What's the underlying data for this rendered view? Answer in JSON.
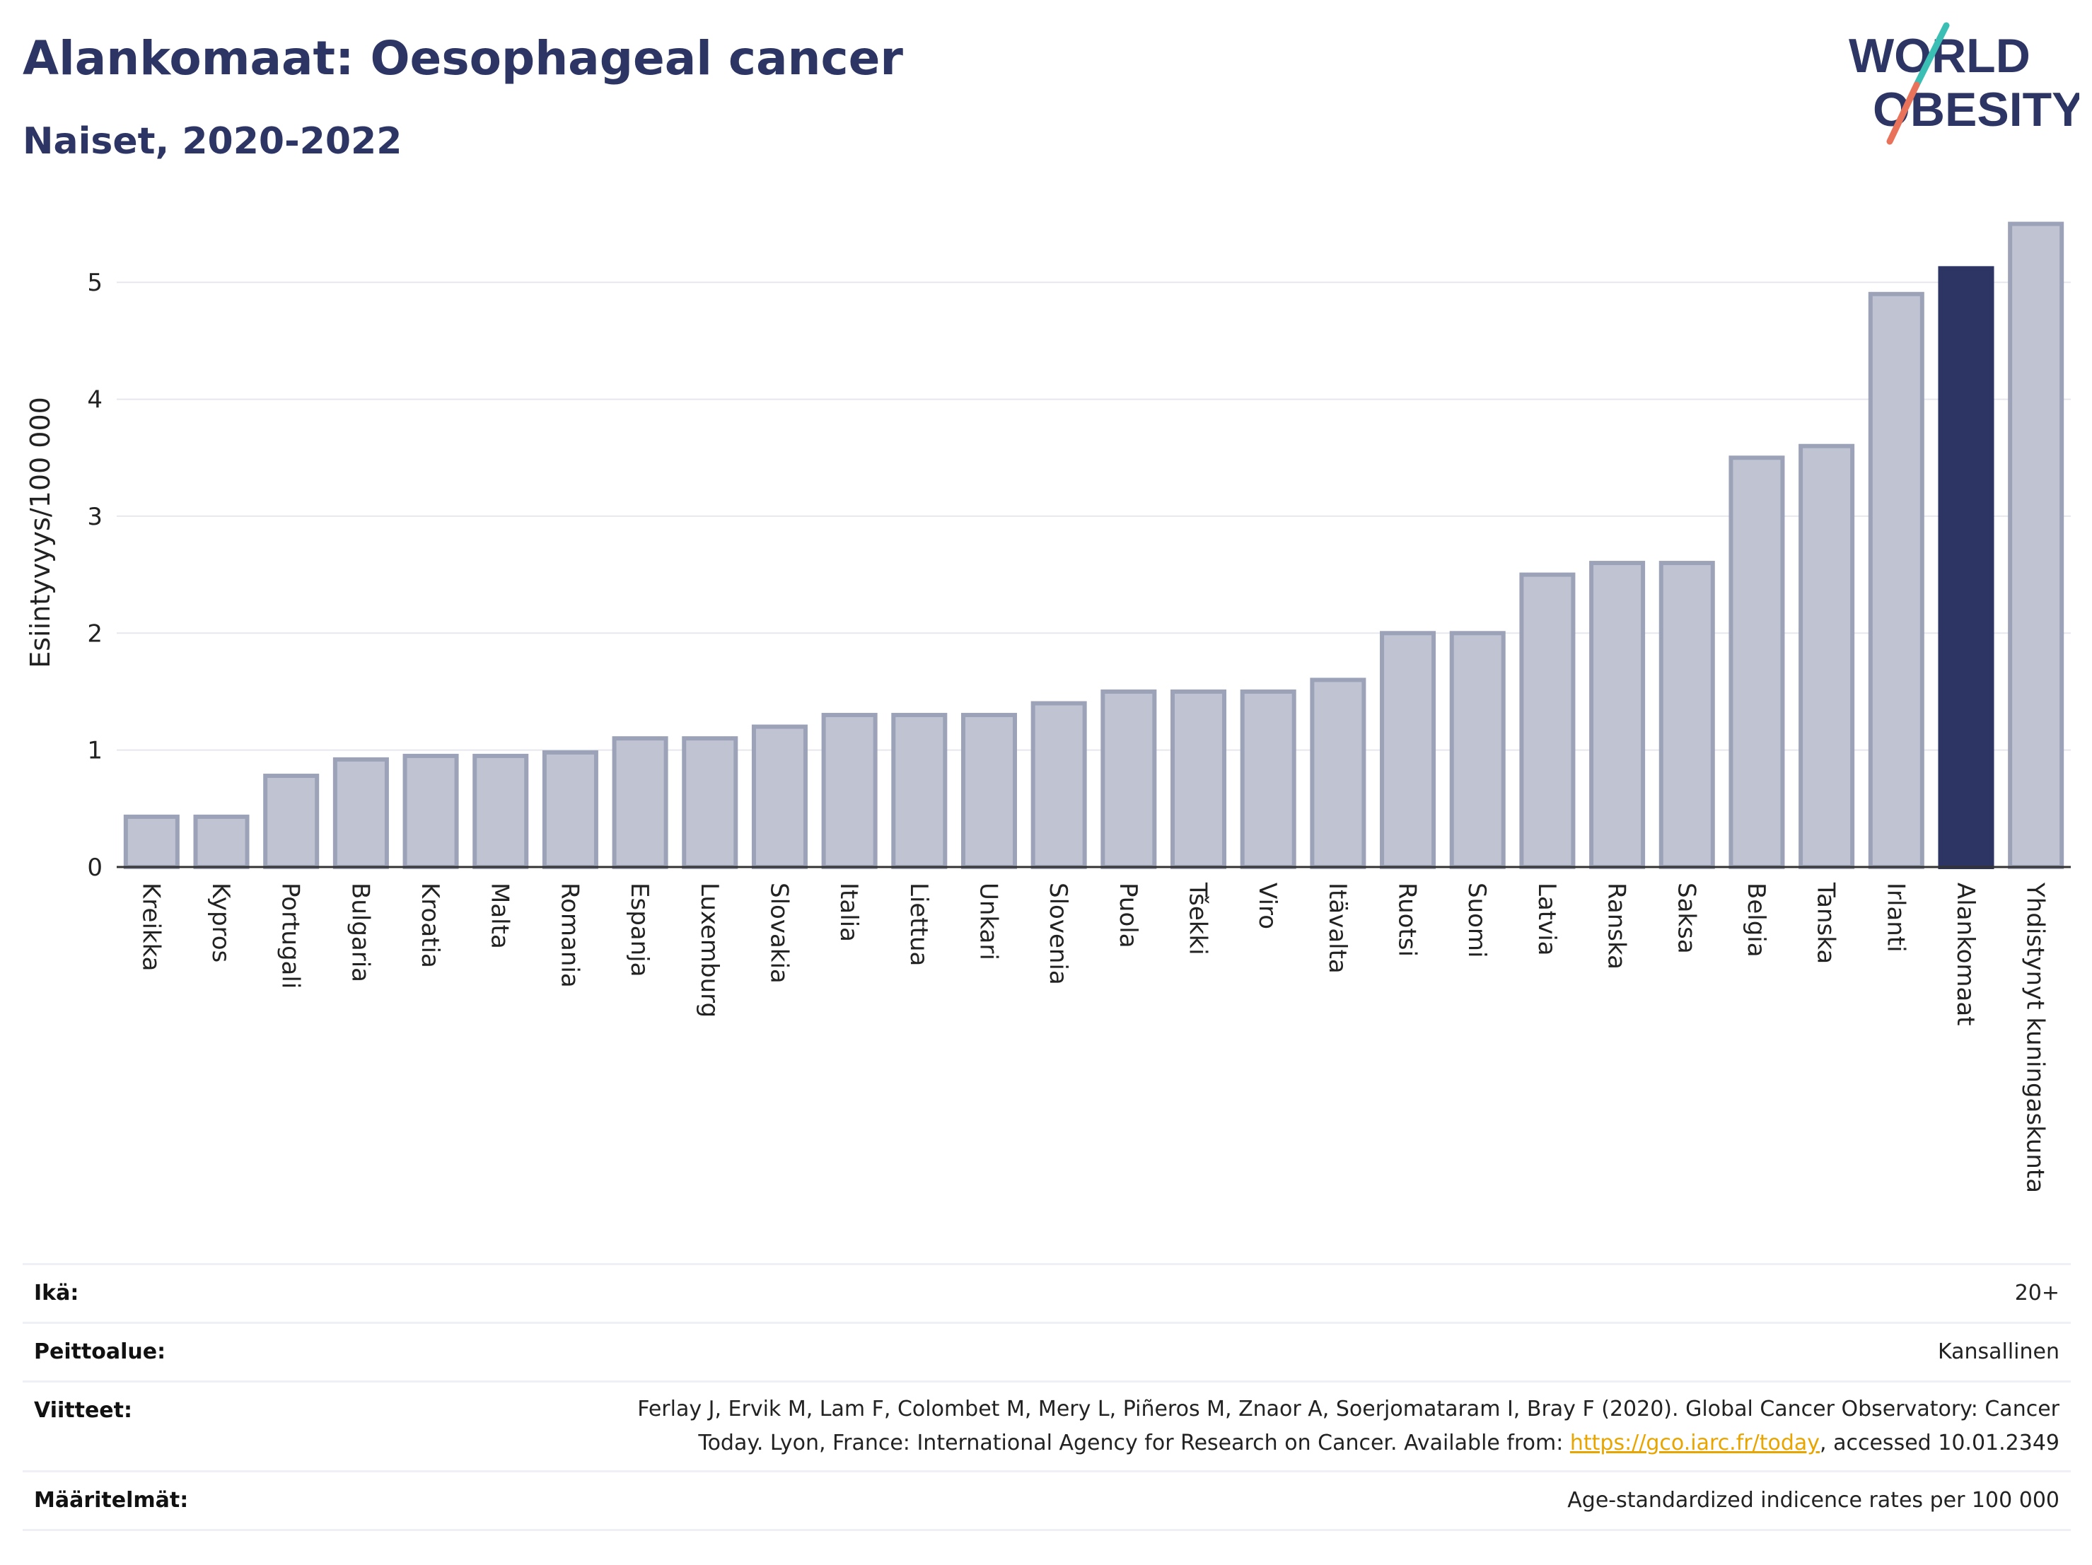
{
  "header": {
    "title": "Alankomaat: Oesophageal cancer",
    "subtitle": "Naiset, 2020-2022"
  },
  "logo": {
    "line1": "WORLD",
    "line2": "OBESITY"
  },
  "colors": {
    "bar": "#c0c4d2",
    "bar_stroke": "#9ca2b8",
    "highlight": "#2c3563",
    "grid": "#e6e8ee",
    "link": "#e8a500"
  },
  "chart_data": {
    "type": "bar",
    "ylabel": "Esiintyvyys/100 000",
    "xlabel": "",
    "ylim": [
      0,
      5.6
    ],
    "yticks": [
      0,
      1,
      2,
      3,
      4,
      5
    ],
    "grid": true,
    "highlight": "Alankomaat",
    "categories": [
      "Kreikka",
      "Kypros",
      "Portugali",
      "Bulgaria",
      "Kroatia",
      "Malta",
      "Romania",
      "Espanja",
      "Luxemburg",
      "Slovakia",
      "Italia",
      "Liettua",
      "Unkari",
      "Slovenia",
      "Puola",
      "Tšekki",
      "Viro",
      "Itävalta",
      "Ruotsi",
      "Suomi",
      "Latvia",
      "Ranska",
      "Saksa",
      "Belgia",
      "Tanska",
      "Irlanti",
      "Alankomaat",
      "Yhdistynyt kuningaskunta"
    ],
    "values": [
      0.43,
      0.43,
      0.78,
      0.92,
      0.95,
      0.95,
      0.98,
      1.1,
      1.1,
      1.2,
      1.3,
      1.3,
      1.3,
      1.4,
      1.5,
      1.5,
      1.5,
      1.6,
      2.0,
      2.0,
      2.5,
      2.6,
      2.6,
      3.5,
      3.6,
      4.9,
      5.12,
      5.5
    ]
  },
  "meta": {
    "age_label": "Ikä:",
    "age_value": "20+",
    "coverage_label": "Peittoalue:",
    "coverage_value": "Kansallinen",
    "refs_label": "Viitteet:",
    "refs_line1": "Ferlay J, Ervik M, Lam F, Colombet M, Mery L, Piñeros M, Znaor A, Soerjomataram I, Bray F (2020). Global Cancer Observatory: Cancer",
    "refs_line2_pre": "Today. Lyon, France: International Agency for Research on Cancer. Available from: ",
    "refs_link": "https://gco.iarc.fr/today",
    "refs_line2_post": ", accessed 10.01.2349",
    "defs_label": "Määritelmät:",
    "defs_value": "Age-standardized indicence rates per 100 000"
  }
}
